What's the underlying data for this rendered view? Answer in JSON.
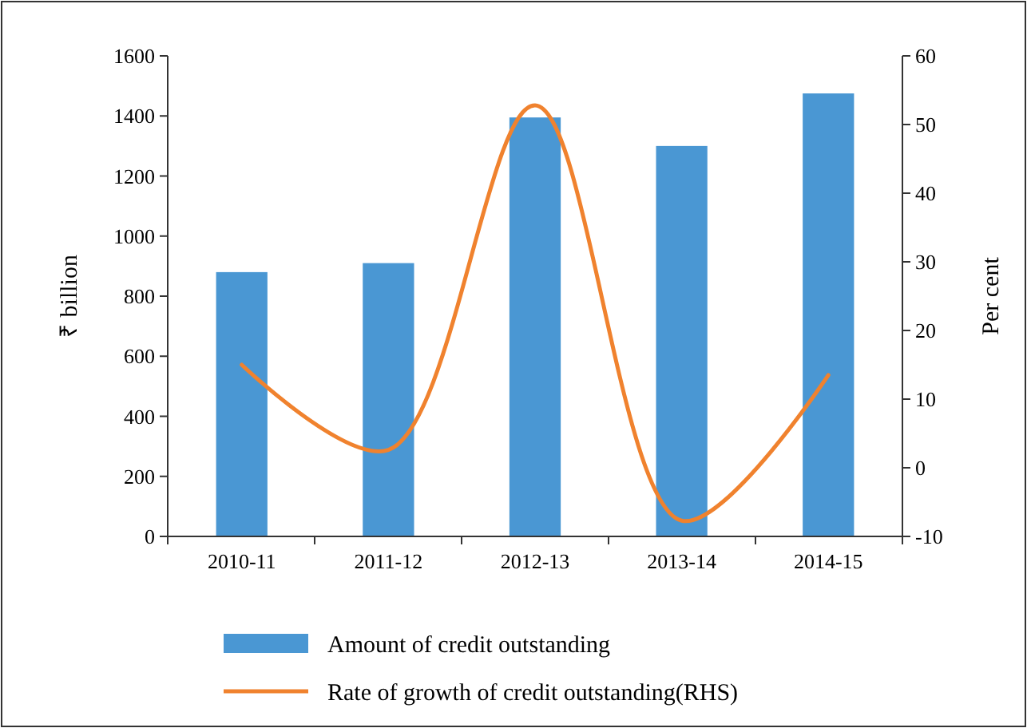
{
  "chart_data": {
    "type": "bar",
    "categories": [
      "2010-11",
      "2011-12",
      "2012-13",
      "2013-14",
      "2014-15"
    ],
    "ylabel": "₹ billion",
    "y2label": "Per cent",
    "series": [
      {
        "name": "Amount of credit outstanding",
        "color": "#4a97d3",
        "values": [
          880,
          910,
          1395,
          1300,
          1475
        ]
      },
      {
        "name": "Rate of growth of credit outstanding(RHS)",
        "type": "line",
        "axis": "y2",
        "color": "#f0822e",
        "values": [
          15,
          2.6,
          52.8,
          -7.7,
          13.5
        ]
      }
    ],
    "ylim": [
      0,
      1600
    ],
    "yticks": [
      0,
      200,
      400,
      600,
      800,
      1000,
      1200,
      1400,
      1600
    ],
    "y2lim": [
      -10,
      60
    ],
    "y2ticks": [
      -10,
      0,
      10,
      20,
      30,
      40,
      50,
      60
    ],
    "legend": "bottom",
    "grid": false
  }
}
